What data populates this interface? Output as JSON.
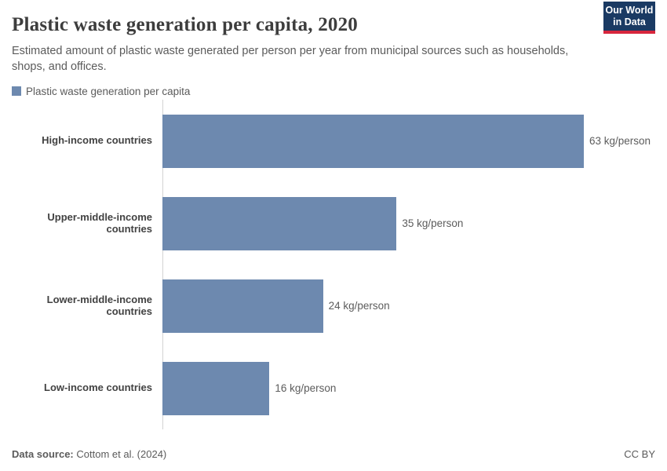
{
  "header": {
    "title": "Plastic waste generation per capita, 2020",
    "subtitle": "Estimated amount of plastic waste generated per person per year from municipal sources such as households, shops, and offices.",
    "logo": {
      "line1": "Our World",
      "line2": "in Data"
    }
  },
  "legend": {
    "label": "Plastic waste generation per capita"
  },
  "chart_data": {
    "type": "bar",
    "orientation": "horizontal",
    "title": "Plastic waste generation per capita, 2020",
    "series_name": "Plastic waste generation per capita",
    "categories": [
      "High-income countries",
      "Upper-middle-income countries",
      "Lower-middle-income countries",
      "Low-income countries"
    ],
    "values": [
      63,
      35,
      24,
      16
    ],
    "value_labels": [
      "63 kg/person",
      "35 kg/person",
      "24 kg/person",
      "16 kg/person"
    ],
    "unit": "kg/person",
    "xlim": [
      0,
      63
    ],
    "grid": false,
    "legend_position": "top-left",
    "bar_color": "#6d89af"
  },
  "footer": {
    "source_label": "Data source:",
    "source_value": "Cottom et al. (2024)",
    "license": "CC BY"
  },
  "colors": {
    "bar": "#6d89af",
    "title": "#3d3d3d",
    "subtitle": "#5b5b5b",
    "axis": "#d3d3d3",
    "logo_bg": "#1a3a63",
    "logo_accent": "#d7263d"
  }
}
